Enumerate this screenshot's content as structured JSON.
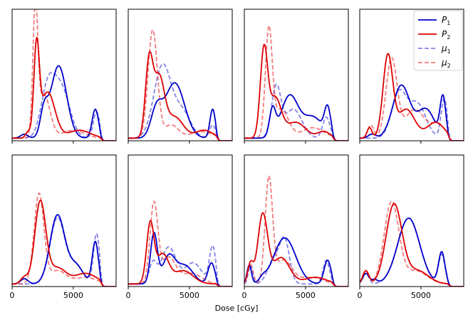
{
  "chart_data": {
    "type": "line",
    "layout_rows": 2,
    "layout_cols": 4,
    "xlabel": "Dose [cGy]",
    "xlim": [
      0,
      8500
    ],
    "x_ticks": [
      0,
      5000
    ],
    "x_tick_labels": [
      "0",
      "5000"
    ],
    "legend": {
      "placement": "top-right of first row, last panel",
      "entries": [
        {
          "key": "P1",
          "base": "P",
          "sub": "1",
          "color": "#0000cc",
          "style": "solid"
        },
        {
          "key": "P2",
          "base": "P",
          "sub": "2",
          "color": "#dd0000",
          "style": "solid"
        },
        {
          "key": "mu1",
          "base": "μ",
          "sub": "1",
          "color": "#7a7ae6",
          "style": "dashed"
        },
        {
          "key": "mu2",
          "base": "μ",
          "sub": "2",
          "color": "#ee7070",
          "style": "dashed"
        }
      ]
    },
    "series_styles": {
      "P1": {
        "color": "#0000cc",
        "dash": "",
        "width": 1.8,
        "opacity": 1
      },
      "P2": {
        "color": "#dd0000",
        "dash": "",
        "width": 1.8,
        "opacity": 1
      },
      "mu1": {
        "color": "#5a5ae0",
        "dash": "6 3",
        "width": 1.8,
        "opacity": 0.75
      },
      "mu2": {
        "color": "#ee4444",
        "dash": "6 3",
        "width": 1.8,
        "opacity": 0.7
      }
    },
    "panels": [
      {
        "id": "r1c1",
        "ylim": [
          0,
          1.0
        ],
        "P1": {
          "baseline": 0.02,
          "peaks": [
            [
              1000,
              0.03,
              300
            ],
            [
              2600,
              0.18,
              300
            ],
            [
              3800,
              0.55,
              650
            ],
            [
              6800,
              0.22,
              260
            ]
          ]
        },
        "P2": {
          "baseline": 0.02,
          "peaks": [
            [
              1300,
              0.04,
              200
            ],
            [
              2000,
              0.65,
              220
            ],
            [
              2900,
              0.35,
              600
            ],
            [
              5500,
              0.06,
              900
            ]
          ]
        },
        "mu1": {
          "baseline": 0.02,
          "peaks": [
            [
              2900,
              0.35,
              550
            ],
            [
              4000,
              0.38,
              700
            ],
            [
              6900,
              0.2,
              260
            ]
          ]
        },
        "mu2": {
          "baseline": 0.02,
          "peaks": [
            [
              1900,
              0.93,
              200
            ],
            [
              2600,
              0.33,
              500
            ],
            [
              5000,
              0.06,
              900
            ]
          ]
        }
      },
      {
        "id": "r1c2",
        "ylim": [
          0,
          1.0
        ],
        "P1": {
          "baseline": 0.02,
          "peaks": [
            [
              2300,
              0.2,
              450
            ],
            [
              3800,
              0.42,
              800
            ],
            [
              6900,
              0.22,
              220
            ]
          ]
        },
        "P2": {
          "baseline": 0.02,
          "peaks": [
            [
              1700,
              0.55,
              300
            ],
            [
              2500,
              0.45,
              450
            ],
            [
              3800,
              0.16,
              700
            ],
            [
              6200,
              0.06,
              700
            ]
          ]
        },
        "mu1": {
          "baseline": 0.02,
          "peaks": [
            [
              2800,
              0.55,
              700
            ],
            [
              4400,
              0.2,
              700
            ],
            [
              6900,
              0.1,
              250
            ]
          ]
        },
        "mu2": {
          "baseline": 0.02,
          "peaks": [
            [
              2000,
              0.82,
              380
            ],
            [
              3500,
              0.1,
              600
            ],
            [
              6000,
              0.05,
              900
            ]
          ]
        }
      },
      {
        "id": "r1c3",
        "ylim": [
          0,
          1.0
        ],
        "P1": {
          "baseline": 0.02,
          "peaks": [
            [
              2300,
              0.2,
              250
            ],
            [
              3700,
              0.32,
              700
            ],
            [
              5600,
              0.16,
              800
            ],
            [
              6800,
              0.2,
              250
            ]
          ]
        },
        "P2": {
          "baseline": 0.02,
          "peaks": [
            [
              1600,
              0.65,
              300
            ],
            [
              2500,
              0.3,
              500
            ],
            [
              4200,
              0.12,
              800
            ],
            [
              6500,
              0.05,
              500
            ]
          ]
        },
        "mu1": {
          "baseline": 0.02,
          "peaks": [
            [
              2600,
              0.38,
              380
            ],
            [
              4000,
              0.22,
              700
            ],
            [
              6700,
              0.16,
              300
            ]
          ]
        },
        "mu2": {
          "baseline": 0.02,
          "peaks": [
            [
              2000,
              0.8,
              280
            ],
            [
              3000,
              0.22,
              600
            ],
            [
              5600,
              0.08,
              900
            ]
          ]
        }
      },
      {
        "id": "r1c4",
        "ylim": [
          0,
          1.0
        ],
        "P1": {
          "baseline": 0.02,
          "peaks": [
            [
              1000,
              0.03,
              300
            ],
            [
              3400,
              0.4,
              700
            ],
            [
              5400,
              0.22,
              700
            ],
            [
              6800,
              0.3,
              230
            ]
          ]
        },
        "P2": {
          "baseline": 0.02,
          "peaks": [
            [
              800,
              0.08,
              200
            ],
            [
              2300,
              0.62,
              400
            ],
            [
              3800,
              0.22,
              700
            ],
            [
              6200,
              0.12,
              700
            ]
          ]
        },
        "mu1": {
          "baseline": 0.02,
          "peaks": [
            [
              3200,
              0.34,
              600
            ],
            [
              4700,
              0.26,
              700
            ],
            [
              6900,
              0.3,
              250
            ]
          ]
        },
        "mu2": {
          "baseline": 0.02,
          "peaks": [
            [
              900,
              0.1,
              250
            ],
            [
              2600,
              0.6,
              450
            ],
            [
              4500,
              0.22,
              800
            ],
            [
              6400,
              0.1,
              600
            ]
          ]
        }
      },
      {
        "id": "r2c1",
        "ylim": [
          0,
          1.0
        ],
        "P1": {
          "baseline": 0.02,
          "peaks": [
            [
              1000,
              0.04,
              300
            ],
            [
              3700,
              0.52,
              600
            ],
            [
              5200,
              0.14,
              600
            ],
            [
              6800,
              0.32,
              250
            ]
          ]
        },
        "P2": {
          "baseline": 0.02,
          "peaks": [
            [
              1000,
              0.05,
              300
            ],
            [
              2300,
              0.62,
              450
            ],
            [
              3700,
              0.12,
              700
            ],
            [
              6000,
              0.08,
              900
            ]
          ]
        },
        "mu1": {
          "baseline": 0.02,
          "peaks": [
            [
              3700,
              0.5,
              600
            ],
            [
              5200,
              0.14,
              600
            ],
            [
              6900,
              0.38,
              250
            ]
          ]
        },
        "mu2": {
          "baseline": 0.02,
          "peaks": [
            [
              2200,
              0.68,
              400
            ],
            [
              3700,
              0.1,
              700
            ],
            [
              6000,
              0.05,
              900
            ]
          ]
        }
      },
      {
        "id": "r2c2",
        "ylim": [
          0,
          1.0
        ],
        "P1": {
          "baseline": 0.02,
          "peaks": [
            [
              2100,
              0.38,
              280
            ],
            [
              3300,
              0.2,
              500
            ],
            [
              4600,
              0.14,
              700
            ],
            [
              6800,
              0.16,
              280
            ]
          ]
        },
        "P2": {
          "baseline": 0.02,
          "peaks": [
            [
              1800,
              0.45,
              300
            ],
            [
              2800,
              0.22,
              500
            ],
            [
              4500,
              0.1,
              800
            ]
          ]
        },
        "mu1": {
          "baseline": 0.02,
          "peaks": [
            [
              2000,
              0.15,
              300
            ],
            [
              3300,
              0.28,
              600
            ],
            [
              5300,
              0.16,
              700
            ],
            [
              6900,
              0.28,
              260
            ]
          ]
        },
        "mu2": {
          "baseline": 0.02,
          "peaks": [
            [
              2100,
              0.6,
              320
            ],
            [
              3300,
              0.2,
              600
            ],
            [
              5200,
              0.08,
              800
            ]
          ]
        }
      },
      {
        "id": "r2c3",
        "ylim": [
          0,
          1.0
        ],
        "P1": {
          "baseline": 0.02,
          "peaks": [
            [
              400,
              0.14,
              180
            ],
            [
              1500,
              0.03,
              250
            ],
            [
              3300,
              0.35,
              900
            ],
            [
              6800,
              0.18,
              280
            ]
          ]
        },
        "P2": {
          "baseline": 0.02,
          "peaks": [
            [
              500,
              0.15,
              220
            ],
            [
              1500,
              0.52,
              400
            ],
            [
              3000,
              0.2,
              700
            ],
            [
              5800,
              0.05,
              900
            ]
          ]
        },
        "mu1": {
          "baseline": 0.02,
          "peaks": [
            [
              500,
              0.14,
              180
            ],
            [
              2400,
              0.18,
              500
            ],
            [
              3300,
              0.32,
              400
            ],
            [
              6700,
              0.18,
              260
            ]
          ]
        },
        "mu2": {
          "baseline": 0.02,
          "peaks": [
            [
              500,
              0.15,
              220
            ],
            [
              2000,
              0.78,
              300
            ],
            [
              3200,
              0.18,
              700
            ],
            [
              5500,
              0.05,
              900
            ]
          ]
        }
      },
      {
        "id": "r2c4",
        "ylim": [
          0,
          1.0
        ],
        "P1": {
          "baseline": 0.02,
          "peaks": [
            [
              500,
              0.08,
              250
            ],
            [
              1200,
              0.03,
              250
            ],
            [
              4000,
              0.5,
              900
            ],
            [
              6700,
              0.24,
              260
            ]
          ]
        },
        "P2": {
          "baseline": 0.02,
          "peaks": [
            [
              500,
              0.1,
              250
            ],
            [
              2800,
              0.6,
              650
            ],
            [
              4700,
              0.1,
              900
            ]
          ]
        },
        "mu1": {
          "baseline": 0.02,
          "peaks": [
            [
              500,
              0.08,
              250
            ],
            [
              4000,
              0.5,
              900
            ],
            [
              6700,
              0.22,
              260
            ]
          ]
        },
        "mu2": {
          "baseline": 0.02,
          "peaks": [
            [
              500,
              0.1,
              250
            ],
            [
              2600,
              0.62,
              600
            ],
            [
              4600,
              0.1,
              900
            ]
          ]
        }
      }
    ]
  }
}
